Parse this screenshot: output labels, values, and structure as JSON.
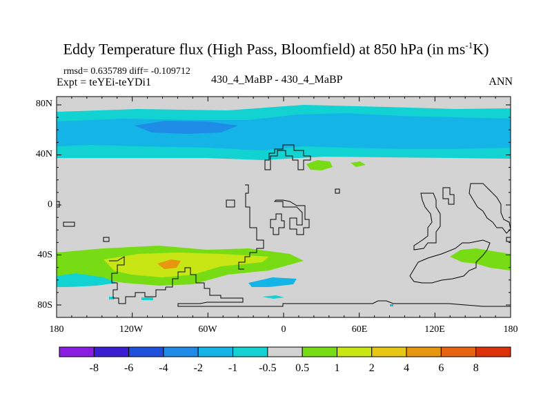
{
  "title": {
    "main_a": "Eddy Temperature flux (High Pass, Bloomfield) at 850 hPa (in ms",
    "superscript": "-1",
    "main_b": "K)"
  },
  "header": {
    "stats": "rmsd= 0.635789 diff= -0.109712",
    "expt": "Expt = teYEi-teYDi1",
    "comparison": "430_4_MaBP - 430_4_MaBP",
    "season": "ANN"
  },
  "axes": {
    "y_ticks": [
      "80N",
      "40N",
      "0",
      "40S",
      "80S"
    ],
    "x_ticks": [
      "180",
      "120W",
      "60W",
      "0",
      "60E",
      "120E",
      "180"
    ]
  },
  "colorbar": {
    "labels": [
      "-8",
      "-6",
      "-4",
      "-2",
      "-1",
      "-0.5",
      "0.5",
      "1",
      "2",
      "4",
      "6",
      "8"
    ],
    "colors": [
      "#8a1ee0",
      "#3c1ed2",
      "#1e50dc",
      "#1e8ce6",
      "#14b4e6",
      "#14d2d2",
      "#d2d2d2",
      "#78dc14",
      "#c8e614",
      "#e6c814",
      "#e6960f",
      "#e6640f",
      "#dc320a"
    ]
  },
  "map": {
    "background": "#d3d3d3",
    "levels": {
      "teal": "#12d2d2",
      "cyan": "#14b4e6",
      "blue": "#1e8ce6",
      "green": "#78dc14",
      "yellow": "#c8e614",
      "orange": "#e6960f"
    }
  }
}
